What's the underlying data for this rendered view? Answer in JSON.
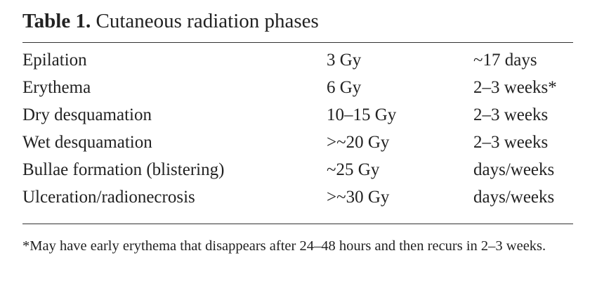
{
  "title": {
    "label": "Table 1.",
    "text": "Cutaneous radiation phases"
  },
  "table": {
    "rows": [
      [
        "Epilation",
        "3 Gy",
        "~17 days"
      ],
      [
        "Erythema",
        "6 Gy",
        "2–3 weeks*"
      ],
      [
        "Dry desquamation",
        "10–15 Gy",
        "2–3 weeks"
      ],
      [
        "Wet desquamation",
        ">~20 Gy",
        "2–3 weeks"
      ],
      [
        "Bullae formation (blistering)",
        "~25 Gy",
        "days/weeks"
      ],
      [
        "Ulceration/radionecrosis",
        ">~30 Gy",
        "days/weeks"
      ]
    ]
  },
  "footnote": "*May have early erythema that disappears after 24–48 hours and then recurs in 2–3 weeks."
}
